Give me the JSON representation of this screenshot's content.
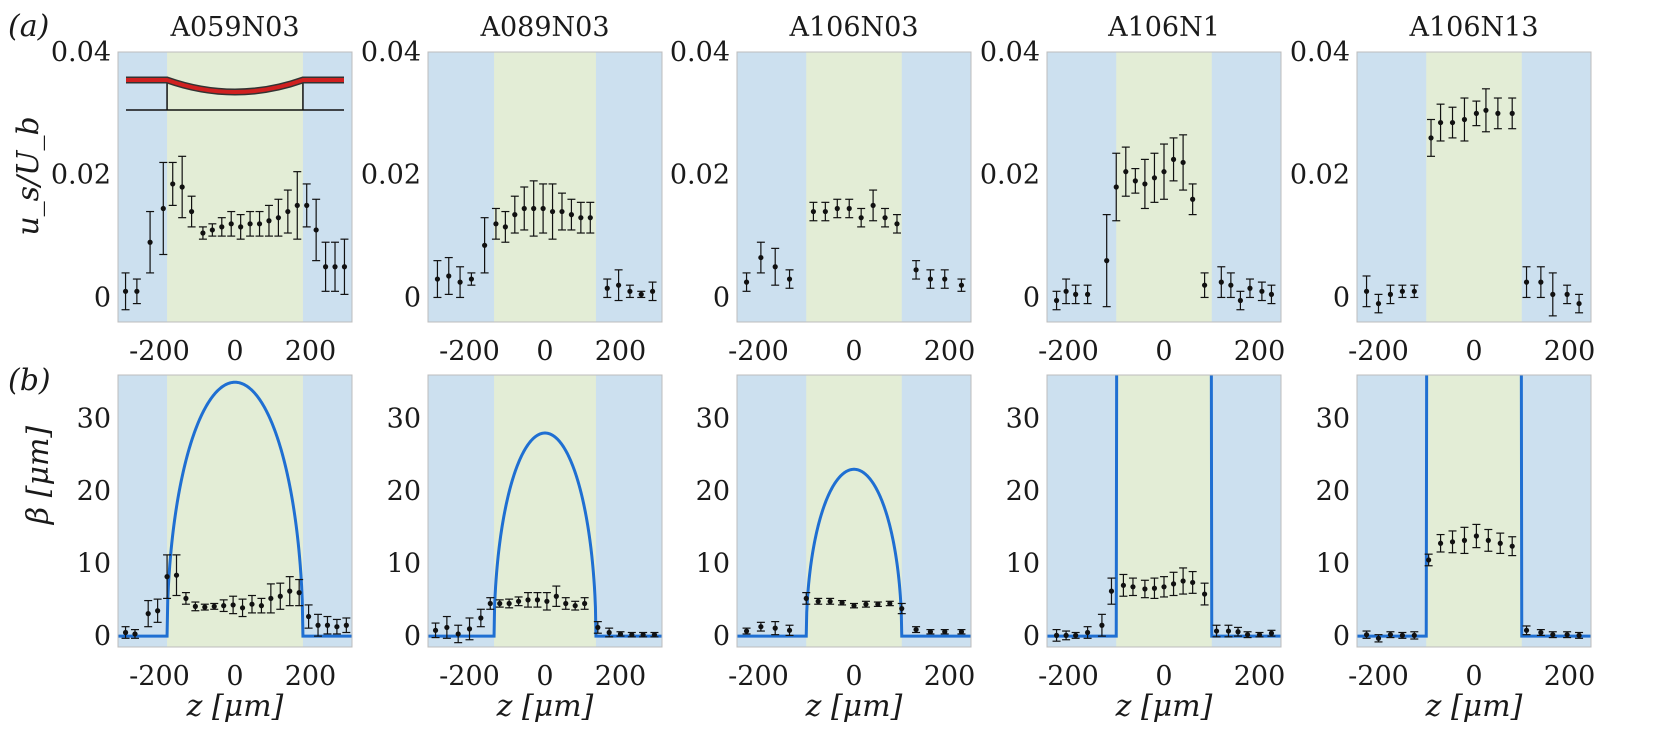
{
  "panel_labels": [
    "(a)",
    "(b)"
  ],
  "titles": [
    "A059N03",
    "A089N03",
    "A106N03",
    "A106N1",
    "A106N13"
  ],
  "labels": {
    "row_a_y": "u_s/U_b",
    "row_b_y": "β [μm]",
    "x": "z [μm]"
  },
  "colors": {
    "outer_region": "#cce0ef",
    "inner_region": "#e3edd6",
    "model_curve": "#1f6fd2",
    "points": "#111111",
    "inset_surface": "#d02020"
  },
  "ticks": {
    "a_y": [
      "0",
      "0.02",
      "0.04"
    ],
    "b_y": [
      "0",
      "10",
      "20",
      "30"
    ],
    "x": [
      "-200",
      "0",
      "200"
    ]
  },
  "chart_data": [
    {
      "type": "scatter",
      "row": "a",
      "panel": "A059N03",
      "xlim": [
        -310,
        310
      ],
      "ylim": [
        -0.004,
        0.04
      ],
      "inner_region": [
        -180,
        180
      ],
      "x": [
        -290,
        -260,
        -225,
        -190,
        -165,
        -140,
        -115,
        -85,
        -60,
        -35,
        -10,
        15,
        40,
        65,
        90,
        115,
        140,
        165,
        190,
        215,
        240,
        265,
        290
      ],
      "y": [
        0.001,
        0.001,
        0.009,
        0.0145,
        0.0185,
        0.018,
        0.014,
        0.0105,
        0.011,
        0.0115,
        0.012,
        0.0115,
        0.012,
        0.012,
        0.0125,
        0.013,
        0.014,
        0.015,
        0.015,
        0.011,
        0.005,
        0.005,
        0.005
      ],
      "err": [
        0.003,
        0.002,
        0.005,
        0.0075,
        0.0035,
        0.005,
        0.0025,
        0.001,
        0.001,
        0.0015,
        0.002,
        0.002,
        0.002,
        0.002,
        0.0025,
        0.003,
        0.0035,
        0.0055,
        0.0035,
        0.005,
        0.004,
        0.004,
        0.0045
      ]
    },
    {
      "type": "scatter",
      "row": "a",
      "panel": "A089N03",
      "xlim": [
        -310,
        310
      ],
      "ylim": [
        -0.004,
        0.04
      ],
      "inner_region": [
        -135,
        135
      ],
      "x": [
        -285,
        -255,
        -225,
        -195,
        -160,
        -130,
        -105,
        -80,
        -55,
        -30,
        -5,
        20,
        45,
        70,
        95,
        120,
        165,
        195,
        225,
        255,
        285
      ],
      "y": [
        0.003,
        0.0035,
        0.0025,
        0.003,
        0.0085,
        0.012,
        0.0115,
        0.0135,
        0.0145,
        0.0145,
        0.0145,
        0.014,
        0.014,
        0.0135,
        0.013,
        0.013,
        0.0015,
        0.002,
        0.001,
        0.0005,
        0.001
      ],
      "err": [
        0.003,
        0.003,
        0.0025,
        0.001,
        0.0045,
        0.0025,
        0.0025,
        0.003,
        0.0035,
        0.0045,
        0.004,
        0.0045,
        0.003,
        0.0025,
        0.0025,
        0.0025,
        0.0015,
        0.0025,
        0.001,
        0.0005,
        0.0015
      ]
    },
    {
      "type": "scatter",
      "row": "a",
      "panel": "A106N03",
      "xlim": [
        -245,
        245
      ],
      "ylim": [
        -0.004,
        0.04
      ],
      "inner_region": [
        -100,
        100
      ],
      "x": [
        -225,
        -195,
        -165,
        -135,
        -85,
        -60,
        -35,
        -10,
        15,
        40,
        65,
        90,
        130,
        160,
        190,
        225
      ],
      "y": [
        0.0025,
        0.0065,
        0.005,
        0.003,
        0.014,
        0.014,
        0.0145,
        0.0145,
        0.013,
        0.015,
        0.013,
        0.012,
        0.0045,
        0.003,
        0.003,
        0.002
      ],
      "err": [
        0.0015,
        0.0025,
        0.003,
        0.0015,
        0.0015,
        0.0015,
        0.0015,
        0.0015,
        0.0015,
        0.0025,
        0.0015,
        0.0015,
        0.0015,
        0.0015,
        0.0015,
        0.001
      ]
    },
    {
      "type": "scatter",
      "row": "a",
      "panel": "A106N1",
      "xlim": [
        -245,
        245
      ],
      "ylim": [
        -0.004,
        0.04
      ],
      "inner_region": [
        -100,
        100
      ],
      "x": [
        -225,
        -205,
        -185,
        -160,
        -120,
        -100,
        -80,
        -60,
        -40,
        -20,
        0,
        20,
        40,
        60,
        85,
        120,
        140,
        160,
        180,
        205,
        225
      ],
      "y": [
        -0.0005,
        0.001,
        0.0005,
        0.0005,
        0.006,
        0.018,
        0.0205,
        0.019,
        0.0185,
        0.0195,
        0.0205,
        0.0225,
        0.022,
        0.016,
        0.002,
        0.0025,
        0.002,
        -0.0005,
        0.0015,
        0.001,
        0.0005
      ],
      "err": [
        0.0015,
        0.002,
        0.0015,
        0.0015,
        0.0075,
        0.0055,
        0.004,
        0.002,
        0.004,
        0.004,
        0.0045,
        0.0035,
        0.0045,
        0.0025,
        0.002,
        0.0025,
        0.002,
        0.0015,
        0.0015,
        0.0015,
        0.0015
      ]
    },
    {
      "type": "scatter",
      "row": "a",
      "panel": "A106N13",
      "xlim": [
        -245,
        245
      ],
      "ylim": [
        -0.004,
        0.04
      ],
      "inner_region": [
        -100,
        100
      ],
      "x": [
        -225,
        -200,
        -175,
        -150,
        -125,
        -90,
        -70,
        -45,
        -20,
        5,
        25,
        50,
        80,
        110,
        140,
        165,
        195,
        220
      ],
      "y": [
        0.001,
        -0.001,
        0.0005,
        0.001,
        0.001,
        0.026,
        0.0285,
        0.0285,
        0.029,
        0.03,
        0.0305,
        0.03,
        0.03,
        0.0025,
        0.0025,
        0.0005,
        0.0005,
        -0.001
      ],
      "err": [
        0.0025,
        0.0015,
        0.0015,
        0.001,
        0.001,
        0.003,
        0.003,
        0.0025,
        0.0035,
        0.002,
        0.0035,
        0.0025,
        0.0025,
        0.0025,
        0.0025,
        0.0035,
        0.0015,
        0.0015
      ]
    },
    {
      "type": "scatter",
      "row": "b",
      "panel": "A059N03",
      "xlim": [
        -310,
        310
      ],
      "ylim": [
        -1.5,
        36
      ],
      "inner_region": [
        -180,
        180
      ],
      "curve": {
        "kind": "ellipse",
        "half_width": 180,
        "peak": 35
      },
      "x": [
        -290,
        -265,
        -230,
        -205,
        -180,
        -155,
        -130,
        -105,
        -80,
        -55,
        -30,
        -5,
        20,
        45,
        70,
        95,
        120,
        145,
        170,
        195,
        220,
        245,
        270,
        295
      ],
      "y": [
        0.5,
        0.3,
        3.1,
        3.5,
        8.2,
        8.4,
        5.2,
        4.1,
        4.0,
        4.1,
        4.2,
        4.3,
        3.9,
        4.4,
        4.2,
        5.2,
        5.5,
        6.2,
        6.0,
        2.7,
        1.5,
        1.5,
        1.3,
        1.5
      ],
      "err": [
        0.8,
        0.6,
        1.8,
        1.6,
        3.0,
        2.8,
        0.8,
        0.6,
        0.4,
        0.4,
        0.8,
        1.2,
        1.2,
        1.2,
        1.0,
        2.0,
        1.8,
        2.0,
        1.8,
        1.6,
        1.5,
        1.2,
        1.0,
        1.0
      ]
    },
    {
      "type": "scatter",
      "row": "b",
      "panel": "A089N03",
      "xlim": [
        -310,
        310
      ],
      "ylim": [
        -1.5,
        36
      ],
      "inner_region": [
        -135,
        135
      ],
      "curve": {
        "kind": "ellipse",
        "half_width": 135,
        "peak": 28
      },
      "x": [
        -290,
        -260,
        -230,
        -200,
        -170,
        -145,
        -120,
        -95,
        -70,
        -45,
        -20,
        5,
        30,
        55,
        80,
        105,
        140,
        170,
        200,
        230,
        260,
        290
      ],
      "y": [
        0.8,
        1.2,
        0.3,
        1.0,
        2.5,
        4.5,
        4.5,
        4.5,
        4.8,
        5.0,
        5.0,
        4.8,
        5.5,
        4.5,
        4.2,
        4.5,
        1.2,
        0.5,
        0.3,
        0.2,
        0.2,
        0.2
      ],
      "err": [
        1.0,
        1.5,
        1.2,
        1.5,
        1.2,
        0.8,
        0.5,
        0.6,
        0.6,
        1.0,
        1.0,
        1.2,
        1.4,
        0.8,
        0.6,
        0.8,
        0.8,
        0.6,
        0.3,
        0.3,
        0.3,
        0.3
      ]
    },
    {
      "type": "scatter",
      "row": "b",
      "panel": "A106N03",
      "xlim": [
        -245,
        245
      ],
      "ylim": [
        -1.5,
        36
      ],
      "inner_region": [
        -100,
        100
      ],
      "curve": {
        "kind": "ellipse",
        "half_width": 100,
        "peak": 23
      },
      "x": [
        -225,
        -195,
        -165,
        -135,
        -100,
        -75,
        -50,
        -25,
        0,
        25,
        50,
        75,
        100,
        130,
        160,
        190,
        225
      ],
      "y": [
        0.7,
        1.3,
        1.1,
        0.8,
        5.2,
        4.8,
        4.8,
        4.6,
        4.2,
        4.4,
        4.4,
        4.5,
        3.8,
        0.9,
        0.6,
        0.6,
        0.6
      ],
      "err": [
        0.4,
        0.6,
        0.9,
        0.7,
        0.8,
        0.4,
        0.4,
        0.3,
        0.3,
        0.4,
        0.3,
        0.3,
        0.7,
        0.4,
        0.3,
        0.3,
        0.3
      ]
    },
    {
      "type": "scatter",
      "row": "b",
      "panel": "A106N1",
      "xlim": [
        -245,
        245
      ],
      "ylim": [
        -1.5,
        36
      ],
      "inner_region": [
        -100,
        100
      ],
      "curve": {
        "kind": "ellipse",
        "half_width": 100,
        "peak": 300
      },
      "x": [
        -225,
        -205,
        -185,
        -160,
        -130,
        -110,
        -85,
        -65,
        -40,
        -20,
        0,
        20,
        40,
        60,
        85,
        110,
        135,
        155,
        175,
        200,
        225
      ],
      "y": [
        0.1,
        0.1,
        0.1,
        0.5,
        1.5,
        6.2,
        7.0,
        6.8,
        6.5,
        6.6,
        6.8,
        7.2,
        7.6,
        7.4,
        5.8,
        0.7,
        0.7,
        0.6,
        0.2,
        0.2,
        0.4
      ],
      "err": [
        0.8,
        0.6,
        0.4,
        0.8,
        1.5,
        1.8,
        1.5,
        1.2,
        1.2,
        1.4,
        1.4,
        1.6,
        1.8,
        1.5,
        1.5,
        0.8,
        0.8,
        0.6,
        0.4,
        0.3,
        0.4
      ]
    },
    {
      "type": "scatter",
      "row": "b",
      "panel": "A106N13",
      "xlim": [
        -245,
        245
      ],
      "ylim": [
        -1.5,
        36
      ],
      "inner_region": [
        -100,
        100
      ],
      "curve": {
        "kind": "ellipse",
        "half_width": 100,
        "peak": 300
      },
      "x": [
        -225,
        -200,
        -175,
        -150,
        -125,
        -95,
        -70,
        -45,
        -20,
        5,
        30,
        55,
        80,
        110,
        140,
        165,
        195,
        220
      ],
      "y": [
        0.2,
        -0.3,
        0.2,
        0.1,
        0.1,
        10.5,
        12.8,
        13.0,
        13.2,
        13.8,
        13.2,
        12.8,
        12.4,
        0.8,
        0.5,
        0.2,
        0.2,
        0.1
      ],
      "err": [
        0.5,
        0.5,
        0.4,
        0.4,
        0.5,
        0.8,
        1.2,
        1.5,
        1.8,
        1.6,
        1.5,
        1.4,
        1.3,
        0.6,
        0.4,
        0.4,
        0.4,
        0.4
      ]
    }
  ]
}
